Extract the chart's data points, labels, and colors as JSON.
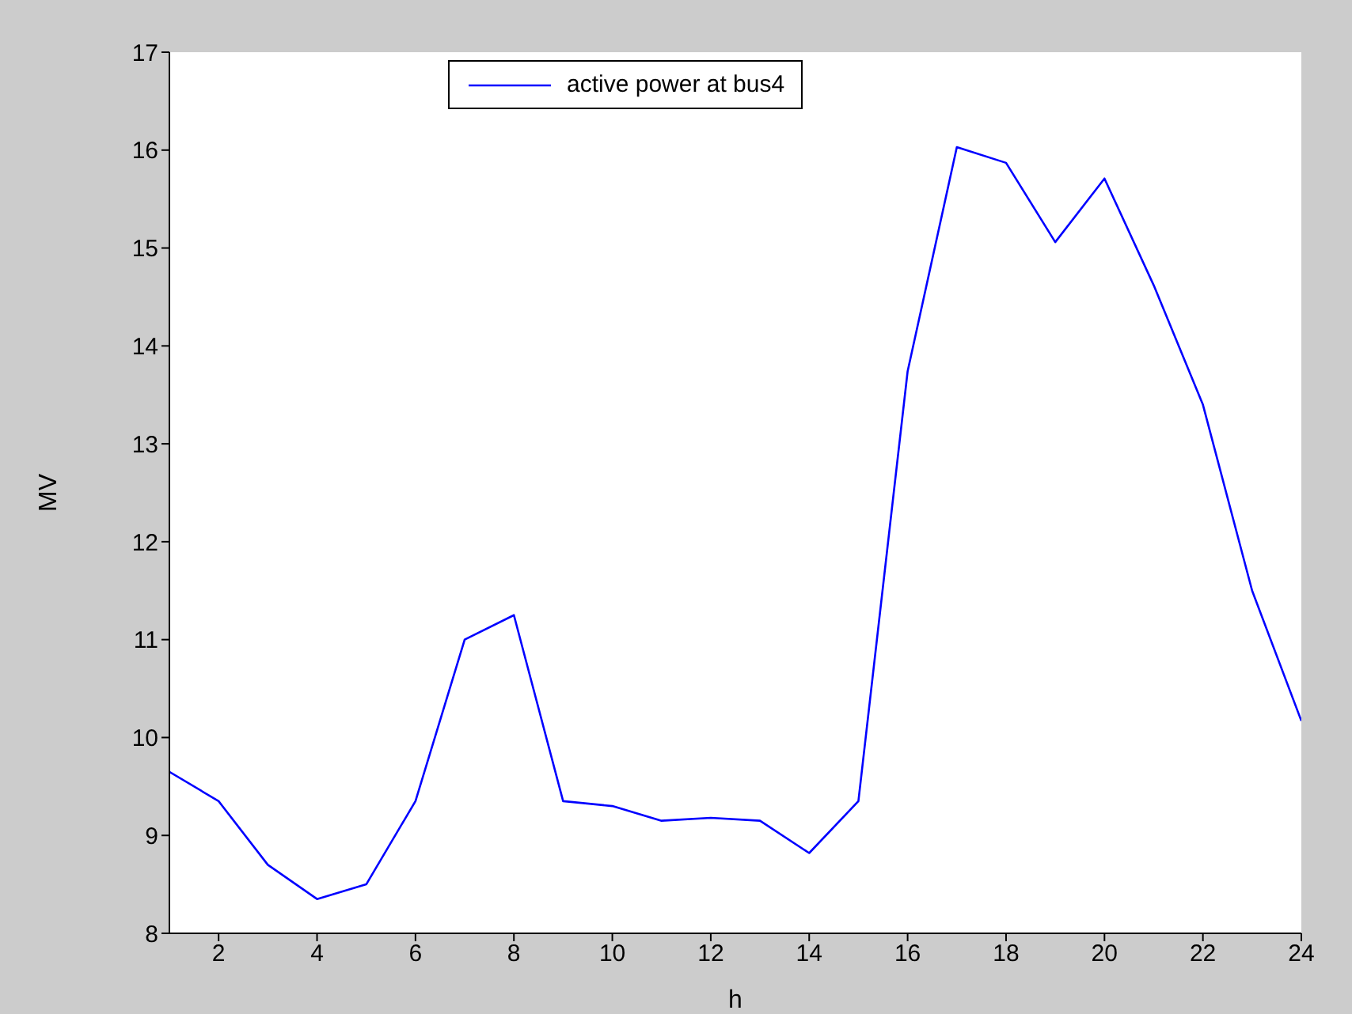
{
  "chart_data": {
    "type": "line",
    "xlabel": "h",
    "ylabel": "MV",
    "x": [
      1,
      2,
      3,
      4,
      5,
      6,
      7,
      8,
      9,
      10,
      11,
      12,
      13,
      14,
      15,
      16,
      17,
      18,
      19,
      20,
      21,
      22,
      23,
      24
    ],
    "series": [
      {
        "name": "active power at bus4",
        "color": "#0000ff",
        "values": [
          9.65,
          9.35,
          8.7,
          8.35,
          8.5,
          9.35,
          11.0,
          11.25,
          9.35,
          9.3,
          9.15,
          9.18,
          9.15,
          8.82,
          9.35,
          13.74,
          16.03,
          15.87,
          15.06,
          15.71,
          14.62,
          13.4,
          11.5,
          10.17
        ]
      }
    ],
    "xlim": [
      1,
      24
    ],
    "xticks": [
      2,
      4,
      6,
      8,
      10,
      12,
      14,
      16,
      18,
      20,
      22,
      24
    ],
    "ylim": [
      8,
      17
    ],
    "yticks": [
      8,
      9,
      10,
      11,
      12,
      13,
      14,
      15,
      16,
      17
    ],
    "grid": false,
    "legend": "top",
    "marker": "none",
    "line_style": "solid"
  }
}
